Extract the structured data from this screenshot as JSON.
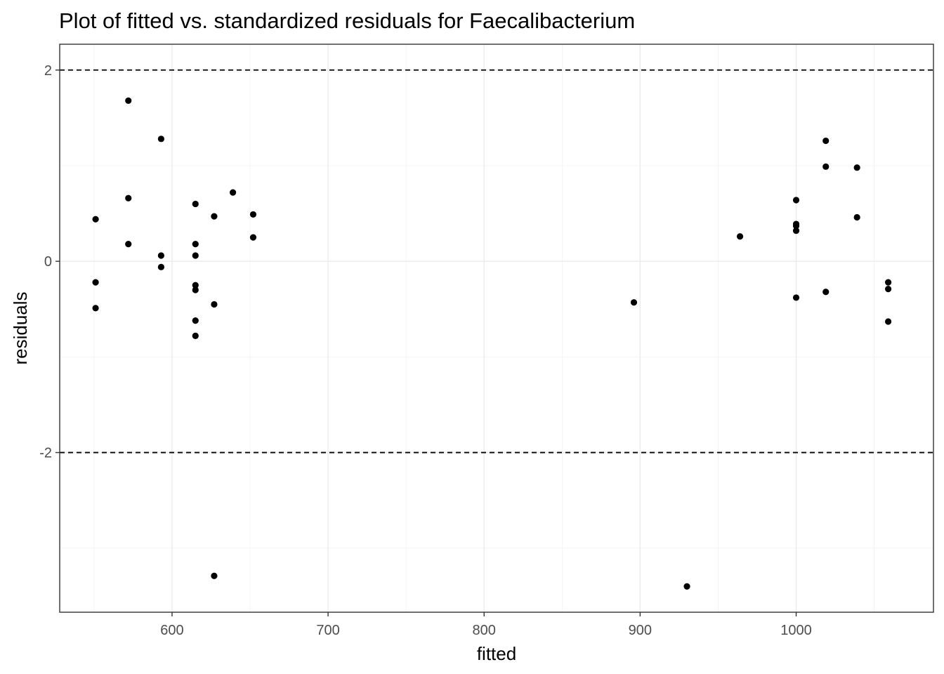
{
  "chart_data": {
    "type": "scatter",
    "title": "Plot of fitted vs. standardized residuals for Faecalibacterium",
    "xlabel": "fitted",
    "ylabel": "residuals",
    "xlim": [
      528,
      1088
    ],
    "ylim": [
      -3.67,
      2.27
    ],
    "x_ticks": [
      600,
      700,
      800,
      900,
      1000
    ],
    "x_tick_labels": [
      "600",
      "700",
      "800",
      "900",
      "1000"
    ],
    "x_minor_ticks": [
      550,
      650,
      750,
      850,
      950,
      1050
    ],
    "y_ticks": [
      -2,
      0,
      2
    ],
    "y_tick_labels": [
      "-2",
      "0",
      "2"
    ],
    "y_minor_ticks": [
      -3,
      -1,
      1
    ],
    "reference_lines": [
      2,
      -2
    ],
    "grid": true,
    "legend": "none",
    "point_color": "#000000",
    "points": [
      {
        "x": 551,
        "y": 0.44
      },
      {
        "x": 551,
        "y": -0.22
      },
      {
        "x": 551,
        "y": -0.49
      },
      {
        "x": 572,
        "y": 1.68
      },
      {
        "x": 572,
        "y": 0.66
      },
      {
        "x": 572,
        "y": 0.18
      },
      {
        "x": 593,
        "y": 1.28
      },
      {
        "x": 593,
        "y": 0.06
      },
      {
        "x": 593,
        "y": -0.06
      },
      {
        "x": 615,
        "y": 0.6
      },
      {
        "x": 615,
        "y": 0.18
      },
      {
        "x": 615,
        "y": 0.06
      },
      {
        "x": 615,
        "y": -0.25
      },
      {
        "x": 615,
        "y": -0.3
      },
      {
        "x": 615,
        "y": -0.62
      },
      {
        "x": 615,
        "y": -0.78
      },
      {
        "x": 627,
        "y": 0.47
      },
      {
        "x": 627,
        "y": -0.45
      },
      {
        "x": 627,
        "y": -3.29
      },
      {
        "x": 639,
        "y": 0.72
      },
      {
        "x": 652,
        "y": 0.49
      },
      {
        "x": 652,
        "y": 0.25
      },
      {
        "x": 896,
        "y": -0.43
      },
      {
        "x": 930,
        "y": -3.4
      },
      {
        "x": 964,
        "y": 0.26
      },
      {
        "x": 1000,
        "y": 0.64
      },
      {
        "x": 1000,
        "y": 0.39
      },
      {
        "x": 1000,
        "y": 0.37
      },
      {
        "x": 1000,
        "y": 0.32
      },
      {
        "x": 1000,
        "y": -0.38
      },
      {
        "x": 1019,
        "y": 1.26
      },
      {
        "x": 1019,
        "y": 0.99
      },
      {
        "x": 1019,
        "y": -0.32
      },
      {
        "x": 1039,
        "y": 0.98
      },
      {
        "x": 1039,
        "y": 0.46
      },
      {
        "x": 1059,
        "y": -0.22
      },
      {
        "x": 1059,
        "y": -0.29
      },
      {
        "x": 1059,
        "y": -0.63
      }
    ]
  }
}
